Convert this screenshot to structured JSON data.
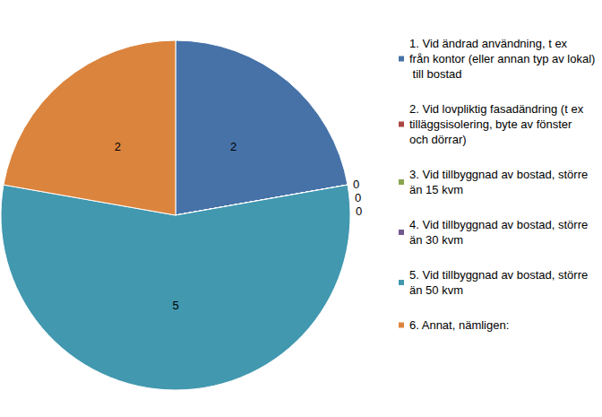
{
  "chart_data": {
    "type": "pie",
    "categories": [
      "1. Vid ändrad användning, t ex från kontor (eller annan typ av lokal) till bostad",
      "2. Vid lovpliktig fasadändring (t ex tilläggsisolering, byte av fönster och dörrar)",
      "3. Vid tillbyggnad av bostad, större än 15 kvm",
      "4. Vid tillbyggnad av bostad, större än 30 kvm",
      "5. Vid tillbyggnad av bostad, större än 50 kvm",
      "6. Annat, nämligen:"
    ],
    "values": [
      2,
      0,
      0,
      0,
      5,
      2
    ],
    "colors": [
      "#4672a8",
      "#aa4643",
      "#89a54e",
      "#71588f",
      "#4198af",
      "#db843d"
    ],
    "data_labels": true,
    "legend": "right"
  }
}
